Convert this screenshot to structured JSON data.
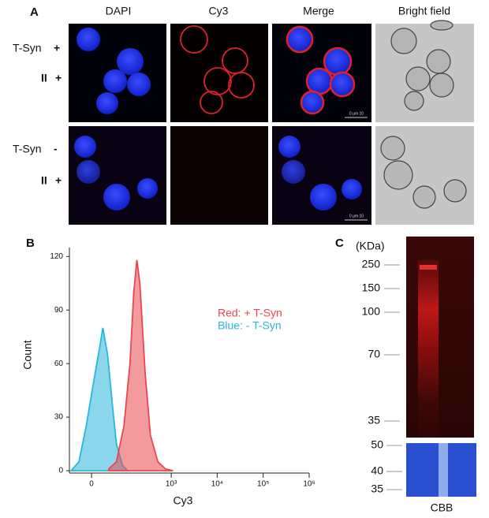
{
  "panel_a": {
    "label": "A",
    "columns": [
      "DAPI",
      "Cy3",
      "Merge",
      "Bright field"
    ],
    "rows": [
      [
        "T-Syn",
        "+"
      ],
      [
        "II",
        "+"
      ],
      [
        "T-Syn",
        "-"
      ],
      [
        "II",
        "+"
      ]
    ],
    "scale_bar": "0 μm 10"
  },
  "chart_data": {
    "type": "area",
    "label": "B",
    "xlabel": "Cy3",
    "ylabel": "Count",
    "xscale": "biexponential",
    "xlim": [
      -50,
      1000000
    ],
    "ylim": [
      0,
      125
    ],
    "xticks": [
      0,
      {
        "value": 1000,
        "label": "10³"
      },
      {
        "value": 10000,
        "label": "10⁴"
      },
      {
        "value": 100000,
        "label": "10⁵"
      },
      {
        "value": 1000000,
        "label": "10⁶"
      }
    ],
    "yticks": [
      0,
      30,
      60,
      90,
      120
    ],
    "series": [
      {
        "name": "Blue: - T-Syn",
        "color": "#29b6dc",
        "x": [
          -45,
          -25,
          -10,
          4,
          16,
          22,
          33,
          47,
          59,
          83,
          110
        ],
        "values": [
          0,
          5,
          25,
          50,
          70,
          80,
          65,
          35,
          15,
          3,
          0
        ]
      },
      {
        "name": "Red: + T-Syn",
        "color": "#e8474f",
        "x": [
          36,
          59,
          90,
          124,
          151,
          177,
          206,
          269,
          351,
          511,
          748,
          1091
        ],
        "values": [
          1,
          5,
          25,
          60,
          100,
          118,
          105,
          55,
          20,
          5,
          1,
          0
        ]
      }
    ]
  },
  "panel_c": {
    "label": "C",
    "unit": "(KDa)",
    "markers": [
      250,
      150,
      100,
      70,
      35
    ],
    "lower_markers": [
      50,
      40,
      35
    ],
    "lower_label": "CBB"
  }
}
